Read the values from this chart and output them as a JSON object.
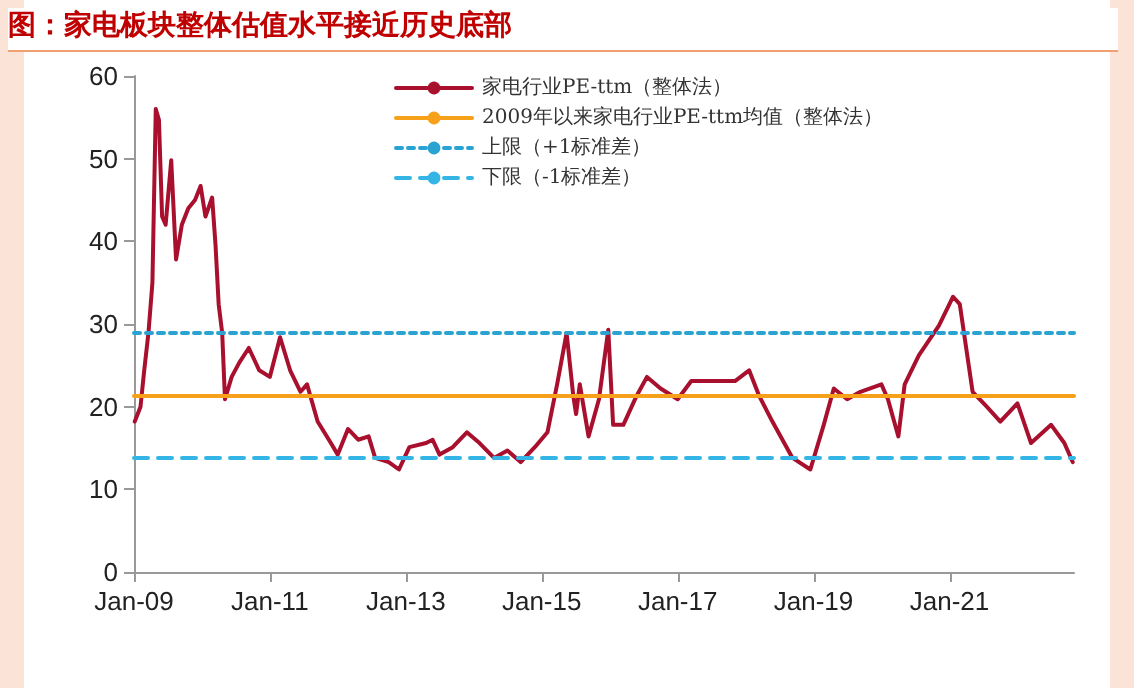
{
  "chart_data": {
    "type": "line",
    "title": "图：家电板块整体估值水平接近历史底部",
    "xlim": [
      "2009-01-01",
      "2022-11-01"
    ],
    "xticks": [
      {
        "value": "2009-01-01",
        "label": "Jan-09"
      },
      {
        "value": "2011-01-01",
        "label": "Jan-11"
      },
      {
        "value": "2013-01-01",
        "label": "Jan-13"
      },
      {
        "value": "2015-01-01",
        "label": "Jan-15"
      },
      {
        "value": "2017-01-01",
        "label": "Jan-17"
      },
      {
        "value": "2019-01-01",
        "label": "Jan-19"
      },
      {
        "value": "2021-01-01",
        "label": "Jan-21"
      }
    ],
    "ylim": [
      0,
      60
    ],
    "yticks": [
      0,
      10,
      20,
      30,
      40,
      50,
      60
    ],
    "grid": false,
    "legend": "top",
    "marker": "none",
    "line_style": "solid",
    "series": [
      {
        "name": "家电行业PE-ttm（整体法）",
        "color": "#a8102e",
        "x": [
          "2009-01-05",
          "2009-02-05",
          "2009-02-25",
          "2009-03-20",
          "2009-04-10",
          "2009-04-28",
          "2009-05-15",
          "2009-06-01",
          "2009-06-20",
          "2009-07-20",
          "2009-08-15",
          "2009-09-15",
          "2009-10-20",
          "2009-11-25",
          "2009-12-25",
          "2010-01-20",
          "2010-02-25",
          "2010-03-15",
          "2010-04-01",
          "2010-04-20",
          "2010-05-05",
          "2010-06-10",
          "2010-07-20",
          "2010-09-10",
          "2010-11-05",
          "2011-01-01",
          "2011-02-25",
          "2011-04-20",
          "2011-06-15",
          "2011-07-20",
          "2011-09-15",
          "2011-11-25",
          "2012-01-01",
          "2012-02-25",
          "2012-04-20",
          "2012-06-15",
          "2012-07-20",
          "2012-10-01",
          "2012-11-25",
          "2013-01-20",
          "2013-04-20",
          "2013-05-25",
          "2013-07-01",
          "2013-09-10",
          "2013-11-25",
          "2014-02-01",
          "2014-04-20",
          "2014-07-01",
          "2014-09-10",
          "2014-11-25",
          "2015-02-01",
          "2015-03-25",
          "2015-05-15",
          "2015-06-20",
          "2015-07-05",
          "2015-07-25",
          "2015-09-10",
          "2015-11-05",
          "2015-12-25",
          "2016-01-20",
          "2016-03-15",
          "2016-05-25",
          "2016-07-20",
          "2016-10-01",
          "2017-01-01",
          "2017-03-15",
          "2017-11-05",
          "2018-01-20",
          "2018-03-15",
          "2018-05-25",
          "2018-09-10",
          "2018-12-15",
          "2019-02-25",
          "2019-04-20",
          "2019-07-01",
          "2019-09-10",
          "2020-01-01",
          "2020-02-05",
          "2020-04-01",
          "2020-05-05",
          "2020-07-20",
          "2020-11-05",
          "2021-01-20",
          "2021-02-25",
          "2021-05-05",
          "2021-07-20",
          "2021-10-01",
          "2022-01-01",
          "2022-03-15",
          "2022-07-01",
          "2022-09-10",
          "2022-10-25"
        ],
        "values": [
          18.2,
          20,
          24.4,
          29,
          35,
          56,
          54.7,
          43,
          42,
          49.8,
          37.8,
          42,
          44,
          45,
          46.7,
          43,
          45.3,
          39.6,
          32.4,
          28.9,
          20.9,
          23.6,
          25.3,
          27.1,
          24.4,
          23.6,
          28.4,
          24.4,
          21.8,
          22.7,
          18.2,
          15.6,
          14.2,
          17.3,
          16,
          16.4,
          13.8,
          13.3,
          12.4,
          15.1,
          15.6,
          16,
          14.2,
          15.1,
          16.9,
          15.6,
          13.8,
          14.7,
          13.3,
          15.1,
          16.9,
          22.7,
          28.9,
          21.3,
          19.1,
          22.7,
          16.4,
          20.9,
          29.3,
          17.8,
          17.8,
          21.3,
          23.6,
          22.2,
          20.9,
          23.1,
          23.1,
          24.4,
          21.3,
          18.2,
          13.8,
          12.4,
          17.8,
          22.2,
          20.9,
          21.8,
          22.7,
          20.9,
          16.4,
          22.7,
          26.2,
          29.8,
          33.3,
          32.4,
          21.8,
          20,
          18.2,
          20.4,
          15.6,
          17.8,
          15.6,
          13.3
        ]
      },
      {
        "name": "2009年以来家电行业PE-ttm均值（整体法）",
        "color": "#f7a11a",
        "x": [
          "2009-01-01",
          "2022-11-01"
        ],
        "values": [
          21.3,
          21.3
        ]
      },
      {
        "name": "上限（+1标准差）",
        "color": "#2aa3d2",
        "line_style": "dotted",
        "x": [
          "2009-01-01",
          "2022-11-01"
        ],
        "values": [
          28.9,
          28.9
        ]
      },
      {
        "name": "下限（-1标准差）",
        "color": "#33b5e5",
        "line_style": "dashed",
        "x": [
          "2009-01-01",
          "2022-11-01"
        ],
        "values": [
          13.8,
          13.8
        ]
      }
    ]
  }
}
